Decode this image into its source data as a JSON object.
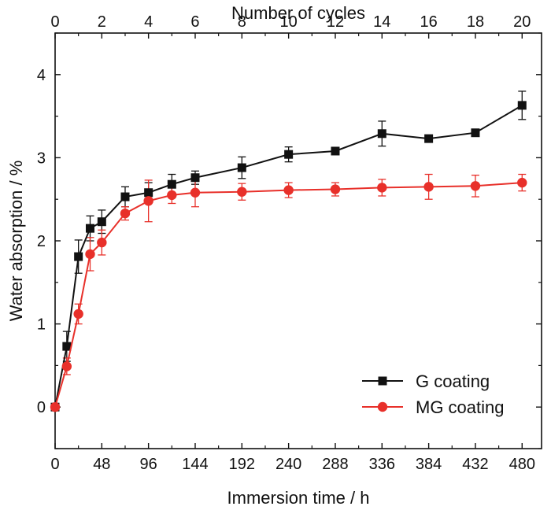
{
  "chart_data": {
    "type": "line",
    "xlabel": "Immersion time / h",
    "ylabel": "Water absorption / %",
    "x2label": "Number of cycles",
    "xlim": [
      0,
      500
    ],
    "ylim": [
      -0.5,
      4.5
    ],
    "x2lim": [
      0,
      20.833
    ],
    "xticks": [
      0,
      48,
      96,
      144,
      192,
      240,
      288,
      336,
      384,
      432,
      480
    ],
    "yticks": [
      0,
      1,
      2,
      3,
      4
    ],
    "x2ticks": [
      0,
      2,
      4,
      6,
      8,
      10,
      12,
      14,
      16,
      18,
      20
    ],
    "legend_position": "bottom-right",
    "grid": false,
    "series": [
      {
        "name": "G coating",
        "color": "#111111",
        "marker": "square",
        "x": [
          0,
          12,
          24,
          36,
          48,
          72,
          96,
          120,
          144,
          192,
          240,
          288,
          336,
          384,
          432,
          480
        ],
        "y": [
          0.0,
          0.73,
          1.81,
          2.15,
          2.23,
          2.53,
          2.58,
          2.68,
          2.76,
          2.88,
          3.04,
          3.08,
          3.29,
          3.23,
          3.3,
          3.63
        ],
        "err": [
          0.02,
          0.18,
          0.2,
          0.15,
          0.14,
          0.12,
          0.12,
          0.12,
          0.08,
          0.13,
          0.09,
          0.03,
          0.15,
          0.04,
          0.04,
          0.17
        ]
      },
      {
        "name": "MG coating",
        "color": "#e8302a",
        "marker": "circle",
        "x": [
          0,
          12,
          24,
          36,
          48,
          72,
          96,
          120,
          144,
          192,
          240,
          288,
          336,
          384,
          432,
          480
        ],
        "y": [
          0.0,
          0.49,
          1.12,
          1.84,
          1.98,
          2.33,
          2.48,
          2.55,
          2.58,
          2.59,
          2.61,
          2.62,
          2.64,
          2.65,
          2.66,
          2.7
        ],
        "err": [
          0.02,
          0.1,
          0.12,
          0.2,
          0.15,
          0.08,
          0.25,
          0.1,
          0.17,
          0.1,
          0.09,
          0.08,
          0.1,
          0.15,
          0.13,
          0.1
        ]
      }
    ]
  }
}
